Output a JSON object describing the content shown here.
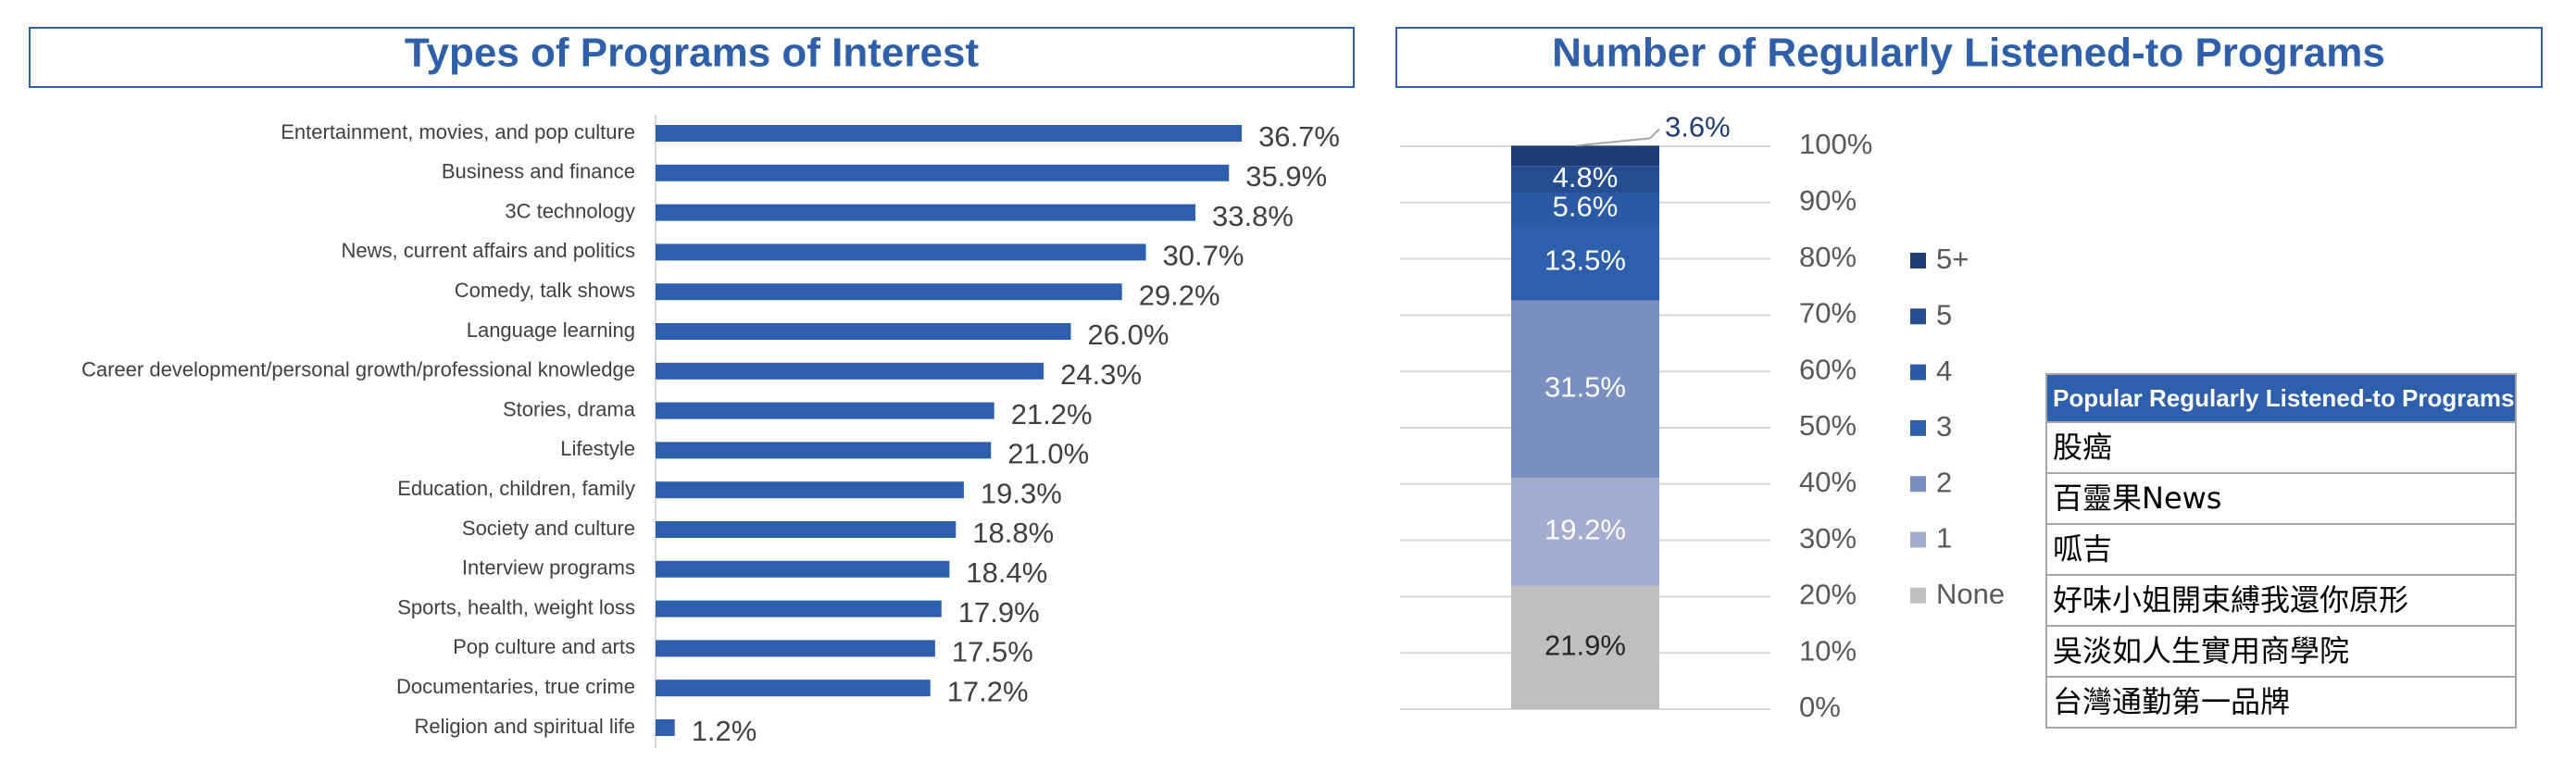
{
  "chart_data": [
    {
      "type": "hbar",
      "title": "Types of Programs of Interest",
      "categories": [
        "Entertainment, movies, and pop culture",
        "Business and finance",
        "3C technology",
        "News, current affairs and politics",
        "Comedy, talk shows",
        "Language learning",
        "Career development/personal growth/professional knowledge",
        "Stories, drama",
        "Lifestyle",
        "Education, children, family",
        "Society and culture",
        "Interview programs",
        "Sports, health, weight loss",
        "Pop culture and arts",
        "Documentaries, true crime",
        "Religion and spiritual life"
      ],
      "values": [
        36.7,
        35.9,
        33.8,
        30.7,
        29.2,
        26.0,
        24.3,
        21.2,
        21.0,
        19.3,
        18.8,
        18.4,
        17.9,
        17.5,
        17.2,
        1.2
      ],
      "value_labels": [
        "36.7%",
        "35.9%",
        "33.8%",
        "30.7%",
        "29.2%",
        "26.0%",
        "24.3%",
        "21.2%",
        "21.0%",
        "19.3%",
        "18.8%",
        "18.4%",
        "17.9%",
        "17.5%",
        "17.2%",
        "1.2%"
      ],
      "color": "#2e5fad",
      "xlim": [
        0,
        40
      ]
    },
    {
      "type": "stacked_bar",
      "title": "Number of Regularly Listened-to Programs",
      "categories": [
        null
      ],
      "series": [
        {
          "name": "None",
          "color": "#bfbfbf",
          "values": [
            21.9
          ],
          "value_labels": [
            "21.9%"
          ]
        },
        {
          "name": "1",
          "color": "#a3adcf",
          "values": [
            19.2
          ],
          "value_labels": [
            "19.2%"
          ]
        },
        {
          "name": "2",
          "color": "#7b8fc0",
          "values": [
            31.5
          ],
          "value_labels": [
            "31.5%"
          ]
        },
        {
          "name": "3",
          "color": "#2e5fad",
          "values": [
            13.5
          ],
          "value_labels": [
            "13.5%"
          ]
        },
        {
          "name": "4",
          "color": "#2a5aa6",
          "values": [
            5.6
          ],
          "value_labels": [
            "5.6%"
          ]
        },
        {
          "name": "5",
          "color": "#244d92",
          "values": [
            4.8
          ],
          "value_labels": [
            "4.8%"
          ]
        },
        {
          "name": "5+",
          "color": "#1f3d73",
          "values": [
            3.6
          ],
          "value_labels": [
            "3.6%"
          ]
        }
      ],
      "ylim": [
        0,
        100
      ],
      "yticks": [
        {
          "value": 0,
          "label": "0%"
        },
        {
          "value": 10,
          "label": "10%"
        },
        {
          "value": 20,
          "label": "20%"
        },
        {
          "value": 30,
          "label": "30%"
        },
        {
          "value": 40,
          "label": "40%"
        },
        {
          "value": 50,
          "label": "50%"
        },
        {
          "value": 60,
          "label": "60%"
        },
        {
          "value": 70,
          "label": "70%"
        },
        {
          "value": 80,
          "label": "80%"
        },
        {
          "value": 90,
          "label": "90%"
        },
        {
          "value": 100,
          "label": "100%"
        }
      ],
      "grid": true
    }
  ],
  "table": {
    "header": "Popular Regularly Listened-to Programs",
    "rows": [
      "股癌",
      "百靈果News",
      "呱吉",
      "好味小姐開束縛我還你原形",
      "吳淡如人生實用商學院",
      "台灣通勤第一品牌"
    ]
  }
}
